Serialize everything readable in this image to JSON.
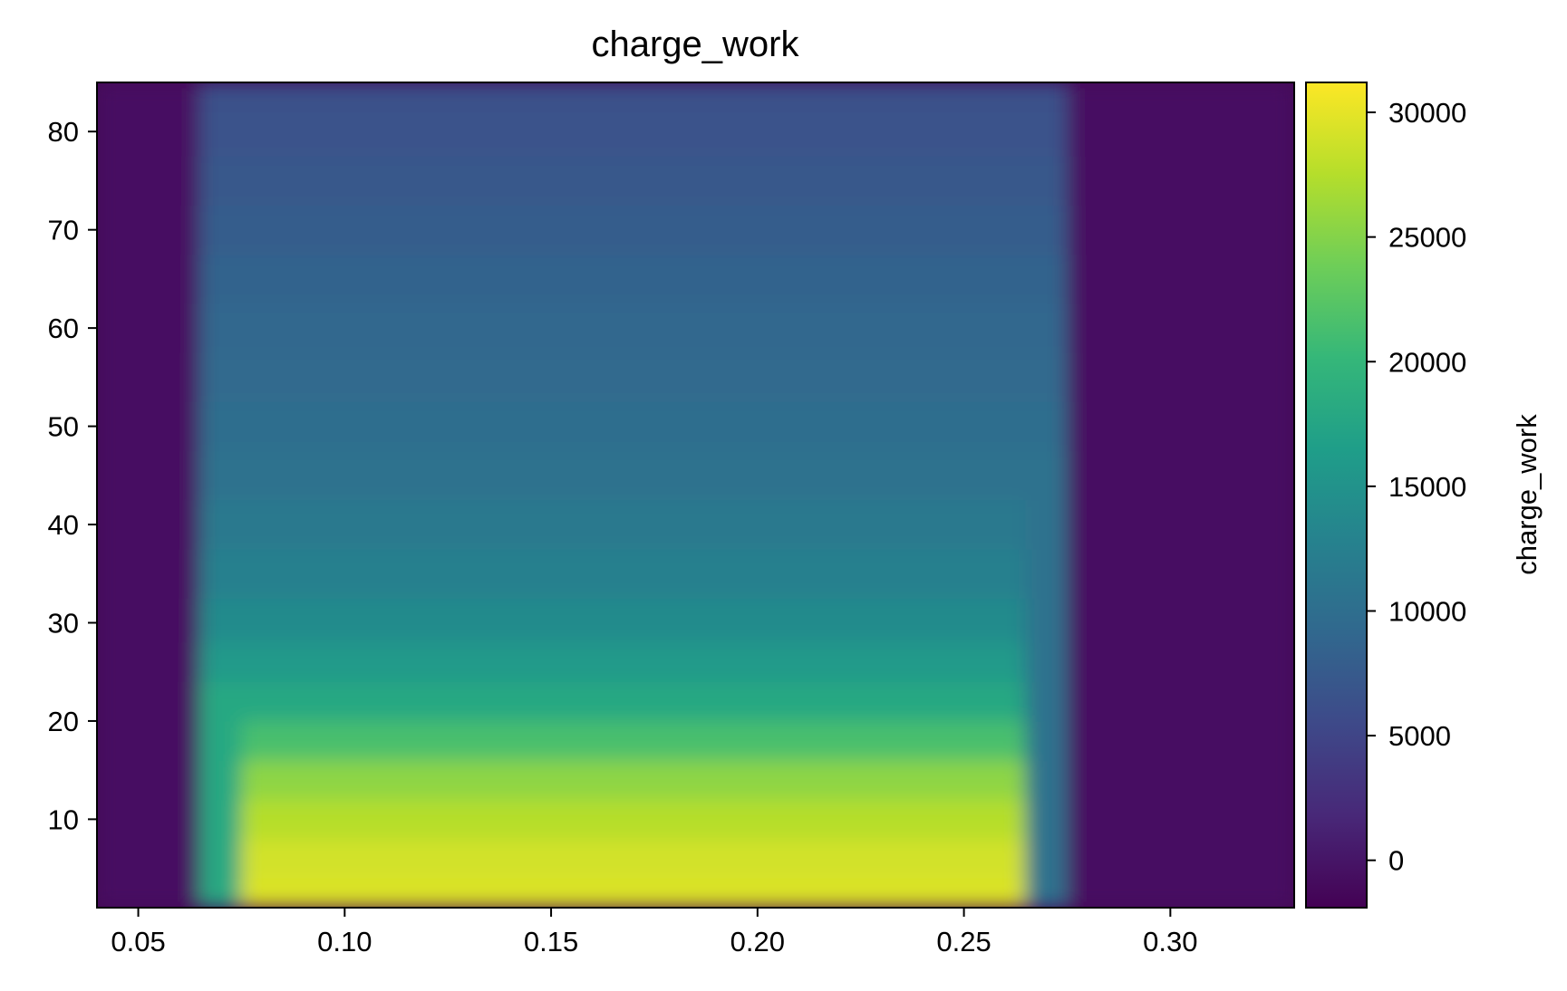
{
  "chart_data": {
    "type": "heatmap",
    "title": "charge_work",
    "xlabel": "",
    "ylabel": "",
    "colorbar_label": "charge_work",
    "colormap": "viridis",
    "colormap_stops": [
      "#440154",
      "#482878",
      "#3e4989",
      "#31688e",
      "#26828e",
      "#1f9e89",
      "#35b779",
      "#6ece58",
      "#b5de2b",
      "#fde725"
    ],
    "grid": false,
    "xlim": [
      0.04,
      0.33
    ],
    "ylim": [
      1,
      85
    ],
    "x_ticks": [
      0.05,
      0.1,
      0.15,
      0.2,
      0.25,
      0.3
    ],
    "x_tick_labels": [
      "0.05",
      "0.10",
      "0.15",
      "0.20",
      "0.25",
      "0.30"
    ],
    "y_ticks": [
      10,
      20,
      30,
      40,
      50,
      60,
      70,
      80
    ],
    "y_tick_labels": [
      "10",
      "20",
      "30",
      "40",
      "50",
      "60",
      "70",
      "80"
    ],
    "colorbar_range": [
      -1900,
      31200
    ],
    "colorbar_ticks": [
      0,
      5000,
      10000,
      15000,
      20000,
      25000,
      30000
    ],
    "colorbar_tick_labels": [
      "0",
      "5000",
      "10000",
      "15000",
      "20000",
      "25000",
      "30000"
    ],
    "x": [
      0.05,
      0.06,
      0.07,
      0.08,
      0.09,
      0.1,
      0.11,
      0.12,
      0.13,
      0.14,
      0.15,
      0.16,
      0.17,
      0.18,
      0.19,
      0.2,
      0.21,
      0.22,
      0.23,
      0.24,
      0.25,
      0.26,
      0.27,
      0.28,
      0.29,
      0.3,
      0.31,
      0.32
    ],
    "y": [
      2,
      6,
      10,
      14,
      18,
      22,
      26,
      30,
      35,
      40,
      45,
      50,
      55,
      60,
      65,
      70,
      75,
      80,
      84
    ],
    "z_row_profile": [
      29500,
      29000,
      27500,
      25500,
      21500,
      18000,
      16000,
      14000,
      12500,
      11500,
      10500,
      10000,
      9600,
      9200,
      8600,
      7800,
      7200,
      6600,
      6400
    ],
    "z_outside": -500,
    "z_edge_columns": {
      "0.07": 18000,
      "0.27": 10500
    }
  }
}
